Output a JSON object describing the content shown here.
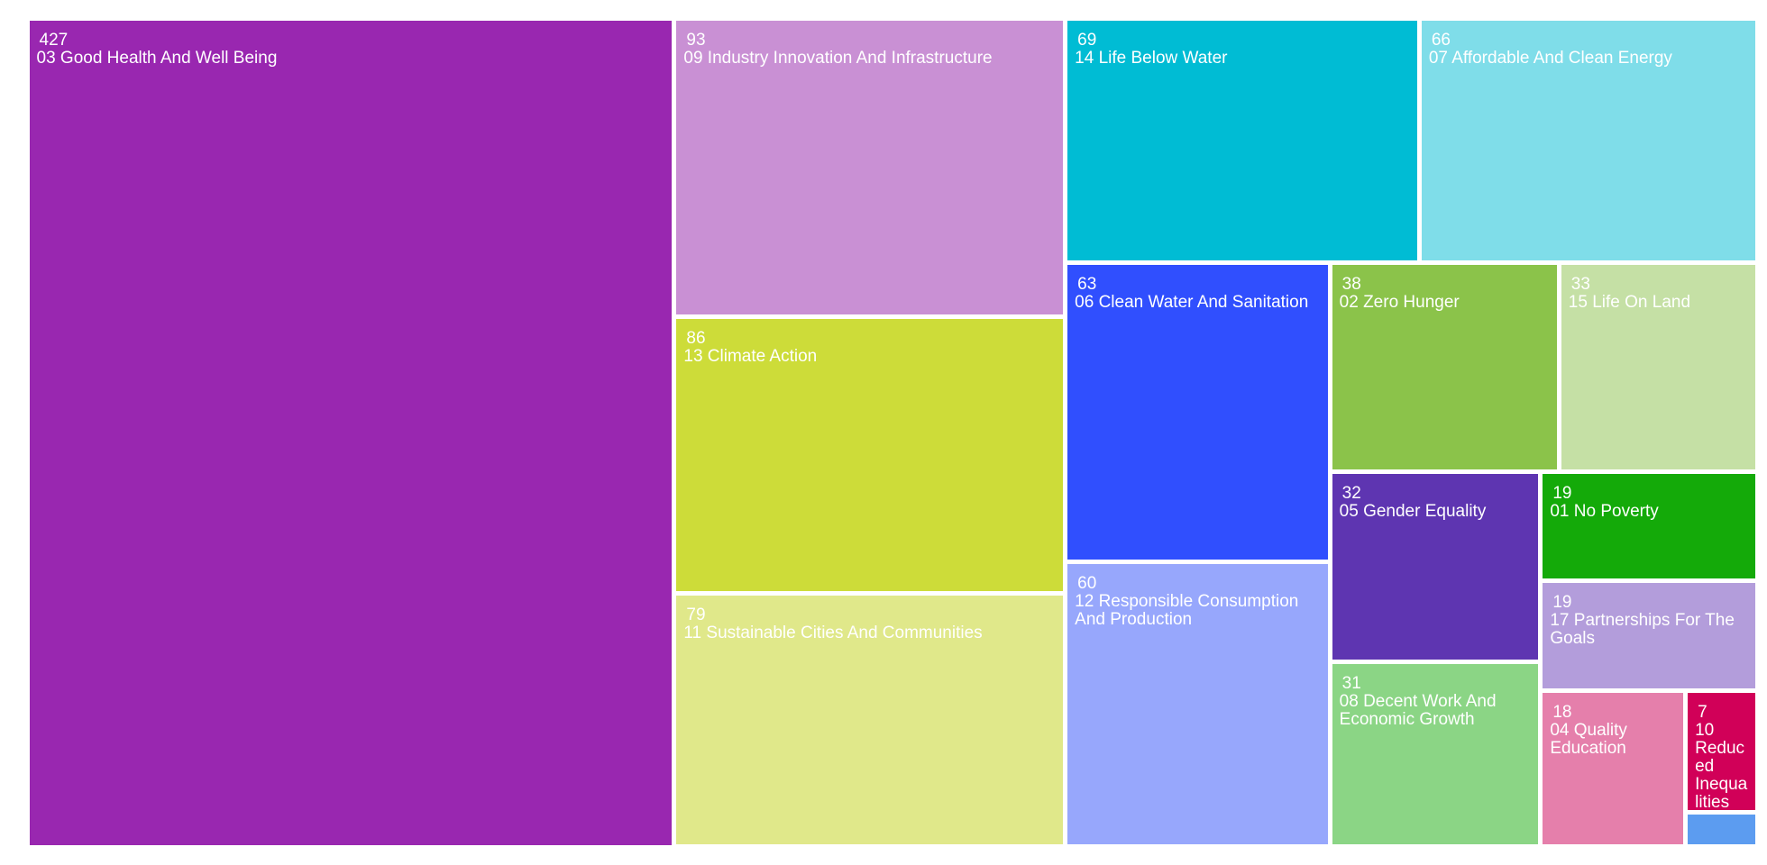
{
  "chart_data": {
    "type": "treemap",
    "categories": [
      "03 Good Health And Well Being",
      "09 Industry Innovation And Infrastructure",
      "13 Climate Action",
      "11 Sustainable Cities And Communities",
      "14 Life Below Water",
      "07 Affordable And Clean Energy",
      "06 Clean Water And Sanitation",
      "12 Responsible Consumption And Production",
      "02 Zero Hunger",
      "15 Life On Land",
      "05 Gender Equality",
      "08 Decent Work And Economic Growth",
      "01 No Poverty",
      "17 Partnerships For The Goals",
      "04 Quality Education",
      "10 Reduced Inequalities",
      null
    ],
    "values": [
      427,
      93,
      86,
      79,
      69,
      66,
      63,
      60,
      38,
      33,
      32,
      31,
      19,
      19,
      18,
      7,
      2
    ],
    "colors": [
      "#9927b0",
      "#c990d4",
      "#cddc39",
      "#e0e88a",
      "#00bcd4",
      "#7fdde9",
      "#304ffe",
      "#97a7fc",
      "#8bc34a",
      "#c5e0a5",
      "#5e35b1",
      "#8bd585",
      "#14aa09",
      "#b39ddb",
      "#e57fab",
      "#d10058",
      "#5c9cf0"
    ]
  }
}
